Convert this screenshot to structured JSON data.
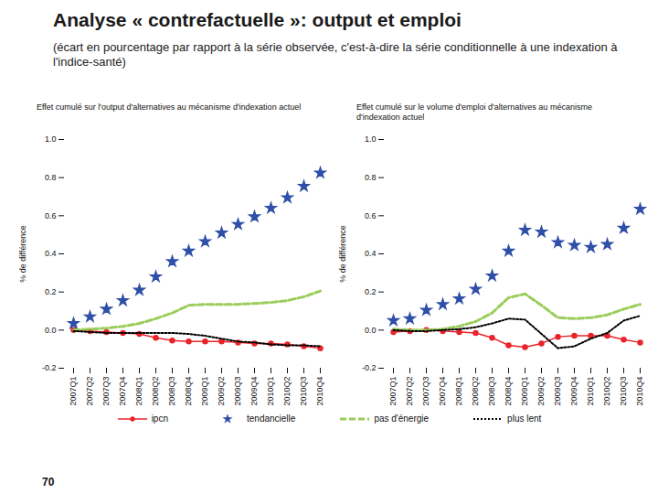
{
  "title": "Analyse « contrefactuelle »: output et emploi",
  "subtitle": "(écart en pourcentage par rapport à la série observée, c'est-à-dire la série conditionnelle à une indexation à l'indice-santé)",
  "page_number": "70",
  "chart_data": [
    {
      "type": "line",
      "title": "Effet cumulé sur l'output d'alternatives au mécanisme d'indexation actuel",
      "y_label": "% de différence",
      "categories": [
        "2007Q1",
        "2007Q2",
        "2007Q3",
        "2007Q4",
        "2008Q1",
        "2008Q2",
        "2008Q3",
        "2008Q4",
        "2009Q1",
        "2009Q2",
        "2009Q3",
        "2009Q4",
        "2010Q1",
        "2010Q2",
        "2010Q3",
        "2010Q4"
      ],
      "ylim": [
        -0.2,
        1.0
      ],
      "yticks": [
        -0.2,
        {
          "value": 0,
          "label": "0.0"
        },
        0.2,
        0.4,
        0.6,
        0.8,
        {
          "value": 1,
          "label": "1.0"
        }
      ],
      "grid": false,
      "legend": "bottom",
      "series": [
        {
          "name": "ipcn",
          "type": "line",
          "marker": "circle",
          "line_style": "solid",
          "color": "#e8242a",
          "values": [
            0.0,
            -0.005,
            -0.01,
            -0.015,
            -0.02,
            -0.04,
            -0.055,
            -0.06,
            -0.06,
            -0.06,
            -0.065,
            -0.07,
            -0.07,
            -0.075,
            -0.085,
            -0.095
          ]
        },
        {
          "name": "tendancielle",
          "type": "scatter",
          "marker": "star",
          "color": "#2f4fa8",
          "values": [
            0.035,
            0.07,
            0.11,
            0.155,
            0.21,
            0.28,
            0.36,
            0.415,
            0.465,
            0.51,
            0.555,
            0.595,
            0.64,
            0.695,
            0.755,
            0.825
          ]
        },
        {
          "name": "pas d'énergie",
          "type": "line",
          "line_style": "dashed",
          "color": "#9acd5a",
          "values": [
            0.0,
            0.005,
            0.01,
            0.02,
            0.035,
            0.06,
            0.09,
            0.13,
            0.135,
            0.135,
            0.135,
            0.14,
            0.145,
            0.155,
            0.175,
            0.205
          ]
        },
        {
          "name": "plus lent",
          "type": "line",
          "line_style": "dotted",
          "color": "#000000",
          "values": [
            -0.005,
            -0.01,
            -0.015,
            -0.015,
            -0.015,
            -0.015,
            -0.015,
            -0.02,
            -0.03,
            -0.045,
            -0.06,
            -0.065,
            -0.075,
            -0.08,
            -0.08,
            -0.085
          ]
        }
      ]
    },
    {
      "type": "line",
      "title": "Effet cumulé sur le volume d'emploi d'alternatives au mécanisme d'indexation actuel",
      "y_label": "% de différence",
      "categories": [
        "2007Q1",
        "2007Q2",
        "2007Q3",
        "2007Q4",
        "2008Q1",
        "2008Q2",
        "2008Q3",
        "2008Q4",
        "2009Q1",
        "2009Q2",
        "2009Q3",
        "2009Q4",
        "2010Q1",
        "2010Q2",
        "2010Q3",
        "2010Q4"
      ],
      "ylim": [
        -0.2,
        1.0
      ],
      "yticks": [
        -0.2,
        {
          "value": 0,
          "label": "0.0"
        },
        0.2,
        0.4,
        0.6,
        0.8,
        {
          "value": 1,
          "label": "1.0"
        }
      ],
      "grid": false,
      "legend": "bottom",
      "series": [
        {
          "name": "ipcn",
          "type": "line",
          "marker": "circle",
          "line_style": "solid",
          "color": "#e8242a",
          "values": [
            -0.01,
            -0.005,
            0.0,
            -0.005,
            -0.01,
            -0.015,
            -0.04,
            -0.08,
            -0.09,
            -0.07,
            -0.035,
            -0.03,
            -0.03,
            -0.03,
            -0.05,
            -0.065
          ]
        },
        {
          "name": "tendancielle",
          "type": "scatter",
          "marker": "star",
          "color": "#2f4fa8",
          "values": [
            0.05,
            0.06,
            0.105,
            0.135,
            0.165,
            0.215,
            0.285,
            0.415,
            0.525,
            0.515,
            0.46,
            0.445,
            0.435,
            0.45,
            0.535,
            0.635
          ]
        },
        {
          "name": "pas d'énergie",
          "type": "line",
          "line_style": "dashed",
          "color": "#9acd5a",
          "values": [
            0.005,
            0.0,
            0.0,
            0.005,
            0.02,
            0.045,
            0.09,
            0.17,
            0.19,
            0.13,
            0.065,
            0.06,
            0.065,
            0.08,
            0.11,
            0.135
          ]
        },
        {
          "name": "plus lent",
          "type": "line",
          "line_style": "dotted",
          "color": "#000000",
          "values": [
            0.0,
            -0.005,
            -0.005,
            0.0,
            0.005,
            0.015,
            0.035,
            0.06,
            0.055,
            -0.02,
            -0.095,
            -0.085,
            -0.045,
            -0.015,
            0.05,
            0.075
          ]
        }
      ]
    }
  ]
}
